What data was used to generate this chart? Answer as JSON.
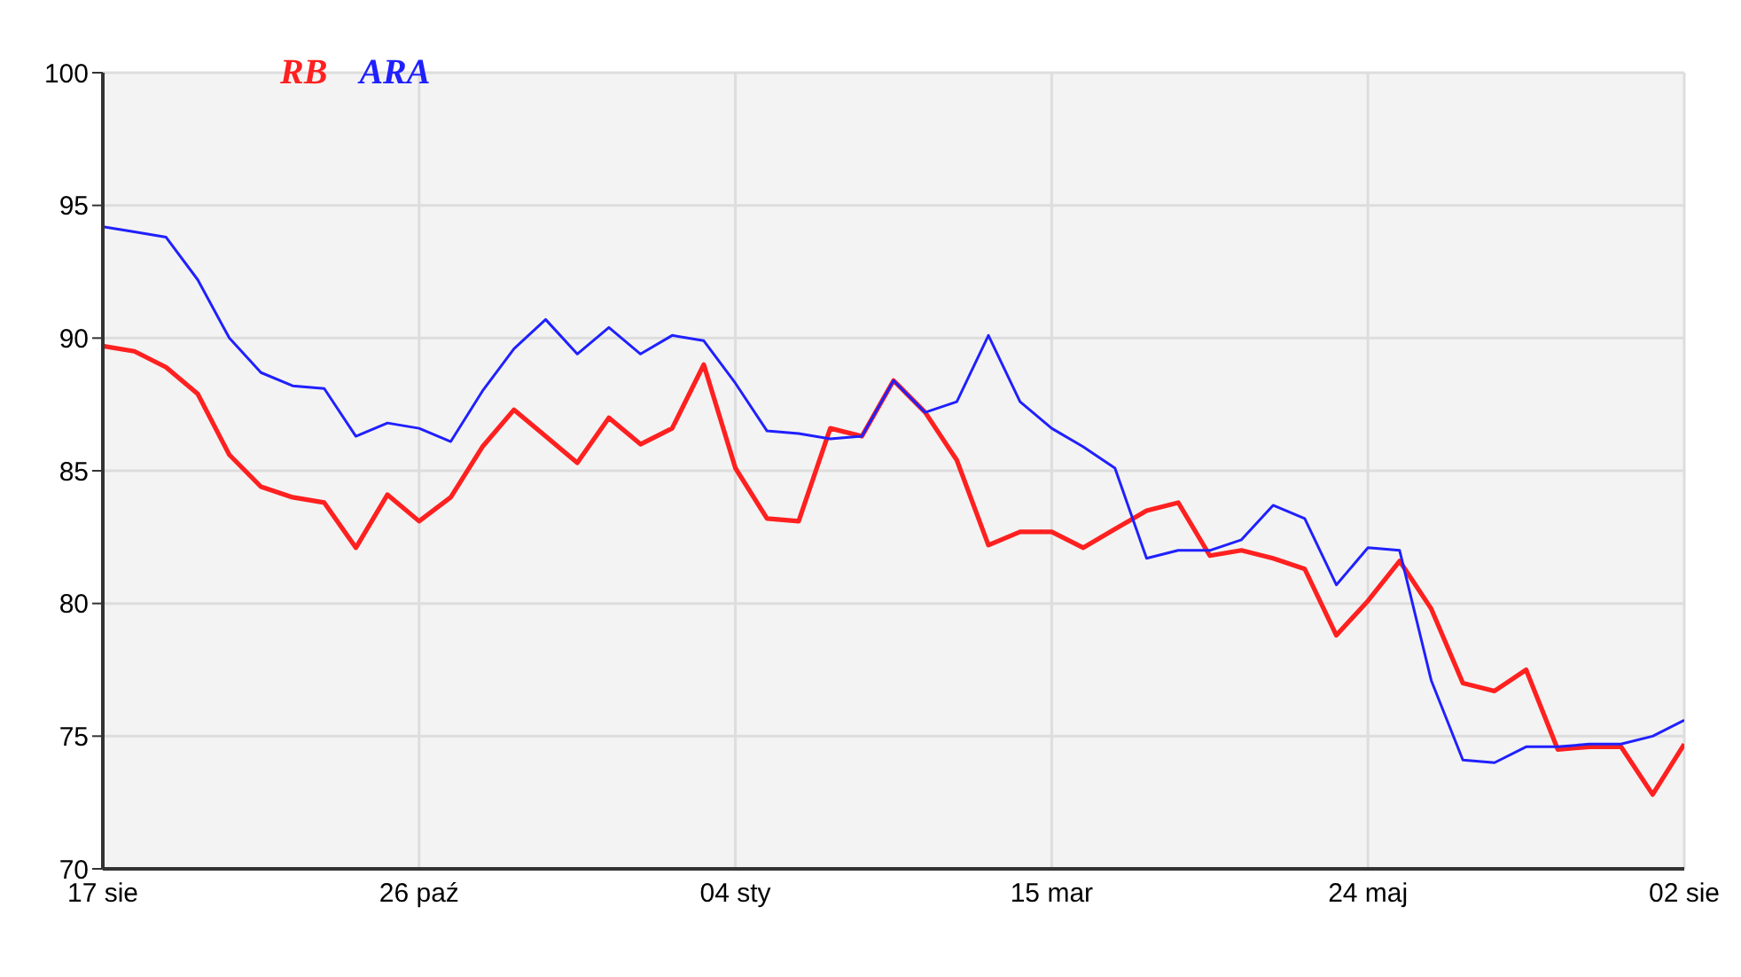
{
  "chart_data": {
    "type": "line",
    "categories": [
      "17 sie",
      null,
      null,
      null,
      null,
      null,
      null,
      null,
      null,
      null,
      "26 paź",
      null,
      null,
      null,
      null,
      null,
      null,
      null,
      null,
      null,
      "04 sty",
      null,
      null,
      null,
      null,
      null,
      null,
      null,
      null,
      null,
      "15 mar",
      null,
      null,
      null,
      null,
      null,
      null,
      null,
      null,
      null,
      "24 maj",
      null,
      null,
      null,
      null,
      null,
      null,
      null,
      null,
      null,
      "02 sie"
    ],
    "series": [
      {
        "name": "RB",
        "color": "#ff2020",
        "values": [
          89.7,
          89.5,
          88.9,
          87.9,
          85.6,
          84.4,
          84.0,
          83.8,
          82.1,
          84.1,
          83.1,
          84.0,
          85.9,
          87.3,
          86.3,
          85.3,
          87.0,
          86.0,
          86.6,
          89.0,
          85.1,
          83.2,
          83.1,
          86.6,
          86.3,
          88.4,
          87.2,
          85.4,
          82.2,
          82.7,
          82.7,
          82.1,
          82.8,
          83.5,
          83.8,
          81.8,
          82.0,
          81.7,
          81.3,
          78.8,
          80.1,
          81.6,
          79.8,
          77.0,
          76.7,
          77.5,
          74.5,
          74.6,
          74.6,
          72.8,
          74.7
        ]
      },
      {
        "name": "ARA",
        "color": "#2020ff",
        "values": [
          94.2,
          94.0,
          93.8,
          92.2,
          90.0,
          88.7,
          88.2,
          88.1,
          86.3,
          86.8,
          86.6,
          86.1,
          88.0,
          89.6,
          90.7,
          89.4,
          90.4,
          89.4,
          90.1,
          89.9,
          88.3,
          86.5,
          86.4,
          86.2,
          86.3,
          88.4,
          87.2,
          87.6,
          90.1,
          87.6,
          86.6,
          85.9,
          85.1,
          81.7,
          82.0,
          82.0,
          82.4,
          83.7,
          83.2,
          80.7,
          82.1,
          82.0,
          77.1,
          74.1,
          74.0,
          74.6,
          74.6,
          74.7,
          74.7,
          75.0,
          75.6
        ]
      }
    ],
    "ylim": [
      70,
      100
    ],
    "yticks": [
      70,
      75,
      80,
      85,
      90,
      95,
      100
    ],
    "grid": true,
    "legend": "top left",
    "marker": "none",
    "line_style": "solid"
  }
}
